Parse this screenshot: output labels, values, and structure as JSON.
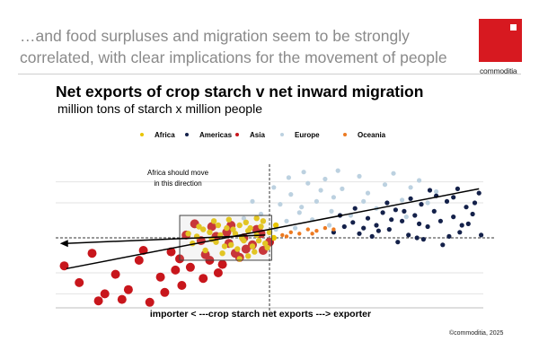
{
  "header": {
    "headline": "…and food surpluses and migration seem to be strongly correlated, with clear implications for the movement of people",
    "logo_text": "commoditia"
  },
  "footer": {
    "copyright": "©commoditia, 2025"
  },
  "colors": {
    "brand_red": "#d71920",
    "Africa": "#e8c500",
    "Americas": "#14214a",
    "Asia": "#c8161c",
    "Europe": "#bcd1e0",
    "Oceania": "#ec7a22"
  },
  "chart_data": {
    "type": "scatter",
    "title": "Net exports of crop starch v net inward migration",
    "subtitle": "million tons of starch x million people",
    "xlabel": "importer < ---crop starch net exports ---> exporter",
    "ylabel": "",
    "xlim": [
      -10,
      10
    ],
    "ylim": [
      -5,
      5
    ],
    "legend_position": "top-center",
    "annotation": "Africa should move in this direction",
    "series": [
      {
        "name": "Africa",
        "color": "#e8c500",
        "points": [
          [
            -3.4,
            0.1
          ],
          [
            -3.1,
            0.6
          ],
          [
            -2.8,
            0.4
          ],
          [
            -2.5,
            -0.3
          ],
          [
            -2.3,
            0.2
          ],
          [
            -2.0,
            0.7
          ],
          [
            -1.8,
            -0.5
          ],
          [
            -1.6,
            0.3
          ],
          [
            -1.4,
            0.9
          ],
          [
            -1.2,
            -0.2
          ],
          [
            -1.0,
            0.5
          ],
          [
            -0.8,
            -0.6
          ],
          [
            -0.6,
            0.2
          ],
          [
            -0.4,
            0.8
          ],
          [
            -0.2,
            -0.4
          ],
          [
            0.0,
            0.4
          ],
          [
            -3.0,
            -0.9
          ],
          [
            -2.6,
            1.2
          ],
          [
            -2.2,
            -1.1
          ],
          [
            -1.9,
            1.3
          ],
          [
            -1.5,
            -0.8
          ],
          [
            -1.1,
            1.1
          ],
          [
            -0.7,
            -1.0
          ],
          [
            -0.3,
            1.2
          ],
          [
            0.2,
            0.0
          ],
          [
            -3.6,
            -0.4
          ],
          [
            -2.4,
            0.9
          ],
          [
            -1.3,
            0.0
          ],
          [
            -0.9,
            0.7
          ],
          [
            -0.5,
            -0.2
          ],
          [
            -2.7,
            -0.1
          ],
          [
            -1.7,
            0.6
          ],
          [
            -0.1,
            -0.7
          ],
          [
            -3.3,
            0.8
          ],
          [
            -1.0,
            -1.3
          ],
          [
            0.3,
            0.9
          ],
          [
            -2.1,
            -0.6
          ],
          [
            -1.4,
            -1.5
          ],
          [
            -0.6,
            1.4
          ],
          [
            -3.8,
            0.3
          ]
        ]
      },
      {
        "name": "Americas",
        "color": "#14214a",
        "points": [
          [
            3.0,
            0.4
          ],
          [
            3.5,
            0.8
          ],
          [
            3.9,
            1.1
          ],
          [
            4.2,
            0.3
          ],
          [
            4.6,
            1.4
          ],
          [
            5.0,
            0.9
          ],
          [
            5.3,
            1.8
          ],
          [
            5.6,
            0.6
          ],
          [
            5.9,
            2.0
          ],
          [
            6.2,
            1.2
          ],
          [
            6.5,
            0.2
          ],
          [
            6.8,
            1.6
          ],
          [
            7.1,
            2.4
          ],
          [
            7.4,
            0.8
          ],
          [
            7.7,
            1.9
          ],
          [
            8.0,
            1.2
          ],
          [
            8.3,
            2.6
          ],
          [
            8.6,
            1.5
          ],
          [
            8.9,
            0.4
          ],
          [
            9.2,
            2.2
          ],
          [
            9.5,
            1.7
          ],
          [
            9.8,
            3.2
          ],
          [
            4.8,
            0.1
          ],
          [
            6.0,
            -0.3
          ],
          [
            7.2,
            -0.1
          ],
          [
            8.4,
            0.1
          ],
          [
            9.0,
            0.9
          ],
          [
            5.5,
            2.5
          ],
          [
            6.6,
            2.8
          ],
          [
            7.8,
            3.0
          ],
          [
            8.8,
            3.5
          ],
          [
            9.9,
            0.2
          ],
          [
            3.3,
            1.6
          ],
          [
            4.0,
            2.1
          ],
          [
            6.9,
            0.0
          ],
          [
            7.5,
            3.4
          ],
          [
            8.1,
            -0.5
          ],
          [
            9.3,
            1.0
          ],
          [
            5.1,
            0.5
          ],
          [
            6.3,
            1.9
          ],
          [
            7.0,
            1.0
          ],
          [
            8.6,
            2.9
          ],
          [
            9.6,
            2.5
          ],
          [
            4.4,
            0.7
          ],
          [
            5.7,
            1.3
          ]
        ]
      },
      {
        "name": "Asia",
        "color": "#c8161c",
        "points": [
          [
            -9.6,
            -2.0
          ],
          [
            -8.9,
            -3.2
          ],
          [
            -8.3,
            -1.1
          ],
          [
            -7.7,
            -4.0
          ],
          [
            -7.2,
            -2.6
          ],
          [
            -6.6,
            -3.7
          ],
          [
            -6.1,
            -1.6
          ],
          [
            -5.6,
            -4.6
          ],
          [
            -5.1,
            -2.8
          ],
          [
            -4.6,
            -1.0
          ],
          [
            -4.1,
            -3.4
          ],
          [
            -3.7,
            -2.1
          ],
          [
            -3.2,
            -0.2
          ],
          [
            -2.8,
            -1.6
          ],
          [
            -2.4,
            -2.5
          ],
          [
            -2.0,
            0.4
          ],
          [
            -1.6,
            -1.1
          ],
          [
            -1.2,
            0.0
          ],
          [
            -0.8,
            -0.5
          ],
          [
            -0.4,
            0.3
          ],
          [
            0.0,
            -0.3
          ],
          [
            -3.5,
            1.0
          ],
          [
            -2.7,
            0.8
          ],
          [
            -1.9,
            -0.4
          ],
          [
            -4.4,
            -2.3
          ],
          [
            -3.9,
            0.2
          ],
          [
            -3.1,
            -2.9
          ],
          [
            -2.2,
            -1.9
          ],
          [
            -1.4,
            -1.4
          ],
          [
            -0.6,
            0.6
          ],
          [
            -5.9,
            -0.9
          ],
          [
            -4.9,
            -3.9
          ],
          [
            -6.9,
            -4.4
          ],
          [
            -4.2,
            -1.5
          ],
          [
            -3.0,
            -1.2
          ],
          [
            -2.5,
            0.1
          ],
          [
            -1.8,
            0.9
          ],
          [
            -1.1,
            -0.8
          ],
          [
            -0.3,
            -0.9
          ],
          [
            -8.0,
            -4.5
          ]
        ]
      },
      {
        "name": "Europe",
        "color": "#bcd1e0",
        "points": [
          [
            0.5,
            2.4
          ],
          [
            1.0,
            3.1
          ],
          [
            1.4,
            1.8
          ],
          [
            1.8,
            3.9
          ],
          [
            2.2,
            2.6
          ],
          [
            2.6,
            4.2
          ],
          [
            3.0,
            2.9
          ],
          [
            3.4,
            3.5
          ],
          [
            3.8,
            1.6
          ],
          [
            4.2,
            4.4
          ],
          [
            4.6,
            3.2
          ],
          [
            5.0,
            2.1
          ],
          [
            5.4,
            3.8
          ],
          [
            5.8,
            4.6
          ],
          [
            6.2,
            2.7
          ],
          [
            6.6,
            3.6
          ],
          [
            7.0,
            4.1
          ],
          [
            7.4,
            2.5
          ],
          [
            7.8,
            3.3
          ],
          [
            0.8,
            1.2
          ],
          [
            1.2,
            0.7
          ],
          [
            1.6,
            4.7
          ],
          [
            2.0,
            1.3
          ],
          [
            2.4,
            3.4
          ],
          [
            2.8,
            0.9
          ],
          [
            3.2,
            4.8
          ],
          [
            0.2,
            3.6
          ],
          [
            1.5,
            2.2
          ],
          [
            4.4,
            2.6
          ],
          [
            6.4,
            1.5
          ],
          [
            0.9,
            4.3
          ],
          [
            2.9,
            1.9
          ],
          [
            -0.4,
            1.7
          ],
          [
            -0.8,
            2.6
          ],
          [
            -1.2,
            1.4
          ],
          [
            0.3,
            0.6
          ]
        ]
      },
      {
        "name": "Oceania",
        "color": "#ec7a22",
        "points": [
          [
            0.6,
            0.2
          ],
          [
            1.0,
            0.4
          ],
          [
            1.4,
            0.3
          ],
          [
            1.8,
            0.6
          ],
          [
            2.2,
            0.5
          ],
          [
            2.6,
            0.7
          ],
          [
            3.0,
            0.6
          ],
          [
            0.8,
            0.1
          ],
          [
            2.0,
            0.3
          ]
        ]
      }
    ],
    "trendline": [
      [
        -9.5,
        -2.2
      ],
      [
        9.8,
        3.5
      ]
    ],
    "arrow": [
      [
        -0.2,
        0.2
      ],
      [
        -9.8,
        -0.4
      ]
    ]
  }
}
